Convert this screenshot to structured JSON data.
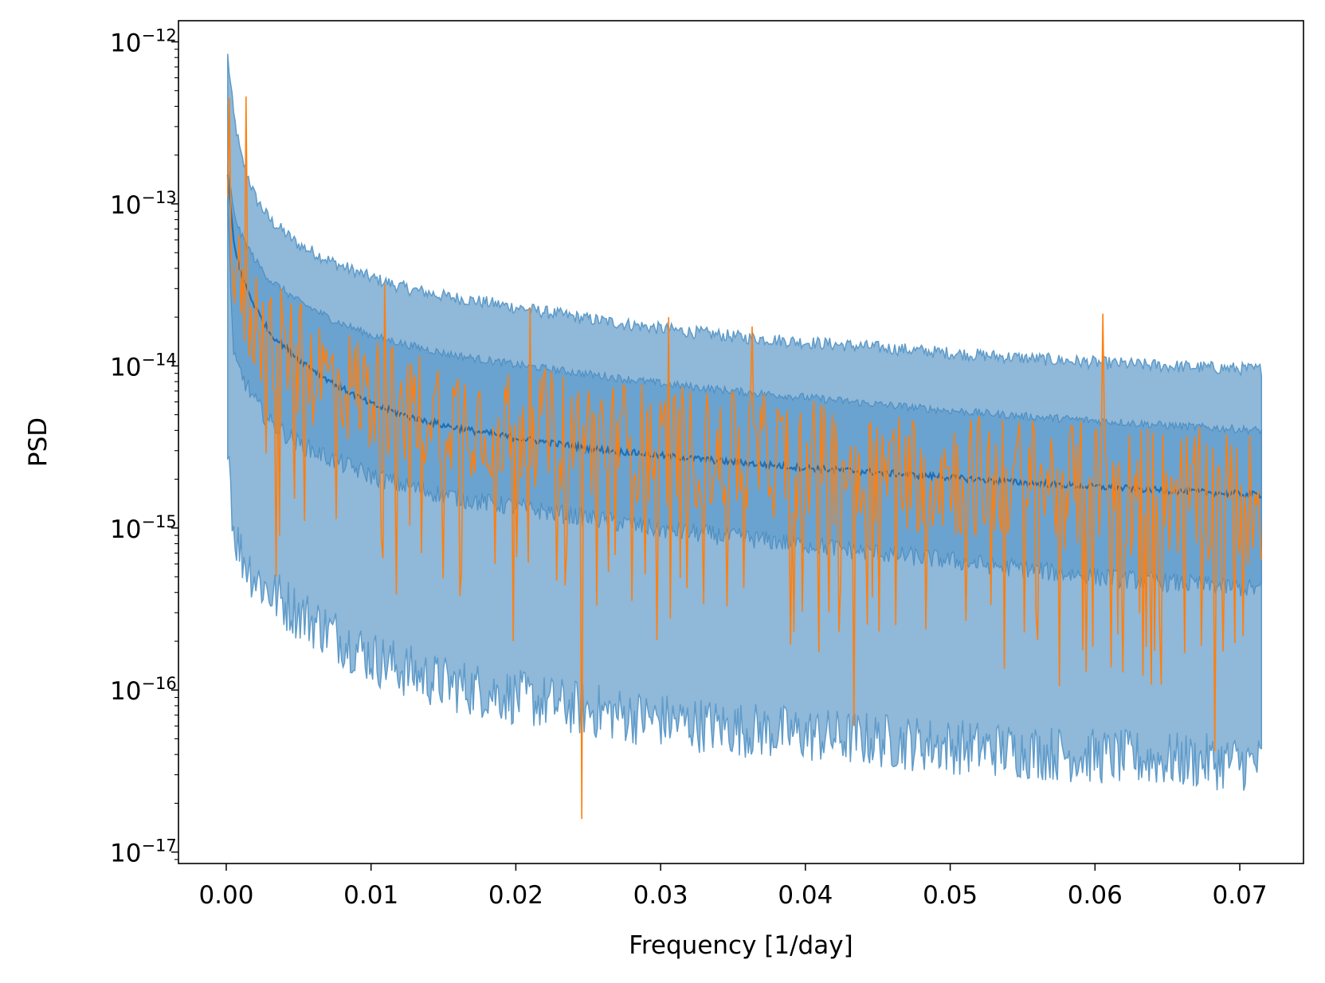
{
  "chart_data": {
    "type": "line",
    "title": "",
    "xlabel": "Frequency [1/day]",
    "ylabel": "PSD",
    "xlim": [
      -0.0033,
      0.0744
    ],
    "ylim": [
      8.5e-18,
      1.35e-12
    ],
    "yscale": "log",
    "grid": false,
    "legend": "none",
    "x_ticks": [
      0.0,
      0.01,
      0.02,
      0.03,
      0.04,
      0.05,
      0.06,
      0.07
    ],
    "x_tick_labels": [
      "0.00",
      "0.01",
      "0.02",
      "0.03",
      "0.04",
      "0.05",
      "0.06",
      "0.07"
    ],
    "y_ticks": [
      1e-17,
      1e-16,
      1e-15,
      1e-14,
      1e-13,
      1e-12
    ],
    "y_tick_labels": [
      {
        "base": "10",
        "exp": "−17"
      },
      {
        "base": "10",
        "exp": "−16"
      },
      {
        "base": "10",
        "exp": "−15"
      },
      {
        "base": "10",
        "exp": "−14"
      },
      {
        "base": "10",
        "exp": "−13"
      },
      {
        "base": "10",
        "exp": "−12"
      }
    ],
    "colors": {
      "band_outer": "#8fb8d9",
      "band_outer_edge": "#5f9bc9",
      "band_inner": "#6aa3cf",
      "band_inner_edge": "#4f8fc2",
      "median": "#1f6fb4",
      "observed": "#ff7f0e",
      "axes": "#000000"
    },
    "x": [
      0.0001,
      0.0005,
      0.001,
      0.002,
      0.003,
      0.005,
      0.0075,
      0.01,
      0.0125,
      0.015,
      0.0175,
      0.02,
      0.025,
      0.03,
      0.035,
      0.04,
      0.045,
      0.05,
      0.055,
      0.06,
      0.065,
      0.0715
    ],
    "series": [
      {
        "role": "outer_upper",
        "values": [
          8.2e-13,
          3.6e-13,
          2e-13,
          1.1e-13,
          8e-14,
          5.6e-14,
          4.3e-14,
          3.5e-14,
          3e-14,
          2.7e-14,
          2.5e-14,
          2.3e-14,
          1.95e-14,
          1.7e-14,
          1.52e-14,
          1.4e-14,
          1.3e-14,
          1.2e-14,
          1.12e-14,
          1.05e-14,
          1e-14,
          9.5e-15
        ]
      },
      {
        "role": "inner_upper",
        "values": [
          1.7e-13,
          9e-14,
          6.5e-14,
          4.5e-14,
          3.4e-14,
          2.5e-14,
          1.9e-14,
          1.55e-14,
          1.35e-14,
          1.2e-14,
          1.1e-14,
          1.02e-14,
          8.9e-15,
          7.8e-15,
          7e-15,
          6.4e-15,
          5.8e-15,
          5.3e-15,
          4.9e-15,
          4.6e-15,
          4.3e-15,
          4e-15
        ]
      },
      {
        "role": "median",
        "values": [
          1.5e-13,
          6e-14,
          3.7e-14,
          2.3e-14,
          1.6e-14,
          1.1e-14,
          7.7e-15,
          5.8e-15,
          4.9e-15,
          4.3e-15,
          3.9e-15,
          3.6e-15,
          3.1e-15,
          2.8e-15,
          2.55e-15,
          2.35e-15,
          2.2e-15,
          2.05e-15,
          1.9e-15,
          1.8e-15,
          1.7e-15,
          1.6e-15
        ]
      },
      {
        "role": "inner_lower",
        "values": [
          1e-13,
          1.1e-14,
          9e-15,
          6e-15,
          4.5e-15,
          3.3e-15,
          2.6e-15,
          2.1e-15,
          1.8e-15,
          1.6e-15,
          1.45e-15,
          1.35e-15,
          1.15e-15,
          9.8e-16,
          8.8e-16,
          7.9e-16,
          7e-16,
          6.3e-16,
          5.6e-16,
          5e-16,
          4.6e-16,
          4.2e-16
        ]
      },
      {
        "role": "outer_lower",
        "values": [
          4e-15,
          1e-15,
          7e-16,
          5e-16,
          4e-16,
          3e-16,
          2.2e-16,
          1.6e-16,
          1.3e-16,
          1.1e-16,
          1e-16,
          9e-17,
          7.5e-17,
          6.5e-17,
          5.8e-17,
          5.3e-17,
          4.9e-17,
          4.5e-17,
          4.2e-17,
          3.9e-17,
          3.7e-17,
          3.5e-17
        ]
      },
      {
        "role": "observed",
        "noisy_between_inner_bounds": true,
        "spikes": [
          {
            "x": 0.0002,
            "y": 4.5e-13
          },
          {
            "x": 0.0014,
            "y": 4.6e-13
          },
          {
            "x": 0.0035,
            "y": 5e-16
          },
          {
            "x": 0.011,
            "y": 3.2e-14
          },
          {
            "x": 0.0135,
            "y": 7e-16
          },
          {
            "x": 0.0198,
            "y": 2e-16
          },
          {
            "x": 0.021,
            "y": 2.3e-14
          },
          {
            "x": 0.0246,
            "y": 1.6e-17
          },
          {
            "x": 0.0305,
            "y": 2e-14
          },
          {
            "x": 0.0363,
            "y": 1.75e-14
          },
          {
            "x": 0.0434,
            "y": 6e-17
          },
          {
            "x": 0.0605,
            "y": 2.1e-14
          },
          {
            "x": 0.0683,
            "y": 4.2e-17
          }
        ]
      }
    ]
  }
}
